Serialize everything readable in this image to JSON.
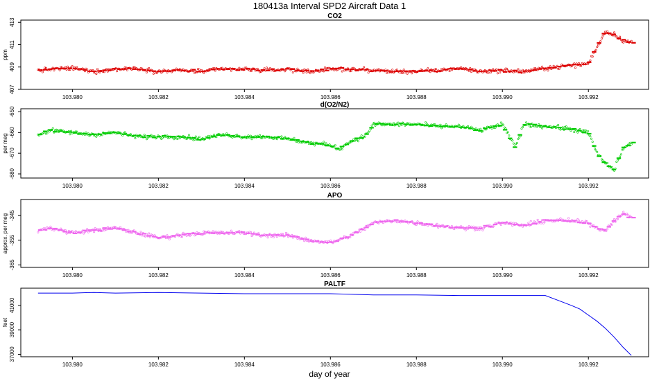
{
  "figure": {
    "title": "180413a   Interval SPD2 Aircraft Data 1",
    "xlabel": "day of year"
  },
  "chart_data": [
    {
      "type": "scatter",
      "title": "CO2",
      "ylabel": "ppm",
      "xlim": [
        103.9788,
        103.9934
      ],
      "ylim": [
        407,
        413.2
      ],
      "xticks": [
        "103.980",
        "103.982",
        "103.984",
        "103.986",
        "103.988",
        "103.990",
        "103.992"
      ],
      "yticks": [
        "407",
        "409",
        "411",
        "413"
      ],
      "series": [
        {
          "style": "raw points (open circles) + interval means (short bars)",
          "color": "#dd0000",
          "x": [
            103.9792,
            103.9795,
            103.98,
            103.9805,
            103.981,
            103.9815,
            103.982,
            103.9825,
            103.983,
            103.9835,
            103.984,
            103.9845,
            103.985,
            103.9855,
            103.986,
            103.9865,
            103.987,
            103.9875,
            103.988,
            103.9885,
            103.989,
            103.9895,
            103.99,
            103.9905,
            103.991,
            103.9915,
            103.992,
            103.9922,
            103.9924,
            103.9926,
            103.9928,
            103.993
          ],
          "y": [
            408.7,
            408.8,
            408.9,
            408.6,
            408.8,
            408.9,
            408.6,
            408.7,
            408.6,
            408.8,
            408.8,
            408.7,
            408.8,
            408.6,
            408.8,
            408.8,
            408.7,
            408.6,
            408.6,
            408.7,
            408.9,
            408.6,
            408.7,
            408.6,
            408.9,
            409.1,
            409.3,
            410.8,
            412.2,
            411.9,
            411.4,
            411.2
          ]
        }
      ]
    },
    {
      "type": "scatter",
      "title": "d(O2/N2)",
      "ylabel": "per meg",
      "xlim": [
        103.9788,
        103.9934
      ],
      "ylim": [
        -682,
        -648.5
      ],
      "xticks": [
        "103.980",
        "103.982",
        "103.984",
        "103.986",
        "103.988",
        "103.990",
        "103.992"
      ],
      "yticks": [
        "-680",
        "-670",
        "-660",
        "-650"
      ],
      "series": [
        {
          "style": "raw points (open circles) + interval means (short bars)",
          "color": "#00cc00",
          "x": [
            103.9792,
            103.9795,
            103.98,
            103.9805,
            103.981,
            103.9815,
            103.982,
            103.9825,
            103.983,
            103.9835,
            103.984,
            103.9845,
            103.985,
            103.9855,
            103.986,
            103.9862,
            103.9865,
            103.9868,
            103.987,
            103.9875,
            103.988,
            103.9885,
            103.989,
            103.9895,
            103.99,
            103.9903,
            103.9905,
            103.991,
            103.9915,
            103.992,
            103.9922,
            103.9924,
            103.9926,
            103.9928,
            103.993
          ],
          "y": [
            -661,
            -659,
            -660,
            -661,
            -660,
            -662,
            -662,
            -662,
            -663,
            -661,
            -662,
            -662,
            -663,
            -665,
            -666,
            -668,
            -664,
            -662,
            -656,
            -656,
            -656,
            -657,
            -657,
            -659,
            -656,
            -667,
            -656,
            -657,
            -658,
            -660,
            -670,
            -675,
            -678,
            -668,
            -665
          ]
        }
      ]
    },
    {
      "type": "scatter",
      "title": "APO",
      "ylabel": "approx. per meg",
      "xlim": [
        103.9788,
        103.9934
      ],
      "ylim": [
        -366,
        -338.5
      ],
      "xticks": [
        "103.980",
        "103.982",
        "103.984",
        "103.986",
        "103.988",
        "103.990",
        "103.992"
      ],
      "yticks": [
        "-365",
        "-355",
        "-345"
      ],
      "series": [
        {
          "style": "raw points (open circles) + interval means (short bars)",
          "color": "#ee66ee",
          "x": [
            103.9792,
            103.9795,
            103.98,
            103.9805,
            103.981,
            103.9815,
            103.982,
            103.9825,
            103.983,
            103.9835,
            103.984,
            103.9845,
            103.985,
            103.9855,
            103.986,
            103.9865,
            103.987,
            103.9875,
            103.988,
            103.9885,
            103.989,
            103.9895,
            103.99,
            103.9905,
            103.991,
            103.9915,
            103.992,
            103.9922,
            103.9924,
            103.9926,
            103.9928,
            103.993
          ],
          "y": [
            -351,
            -350,
            -352,
            -351,
            -350,
            -352,
            -354,
            -353,
            -352,
            -352,
            -352,
            -353,
            -353,
            -355,
            -356,
            -353,
            -348,
            -347,
            -348,
            -349,
            -350,
            -350,
            -348,
            -349,
            -347,
            -347,
            -348,
            -350,
            -351,
            -347,
            -344,
            -346
          ]
        }
      ]
    },
    {
      "type": "line",
      "title": "PALTF",
      "ylabel": "feet",
      "xlim": [
        103.9788,
        103.9934
      ],
      "ylim": [
        36800,
        42400
      ],
      "xticks": [
        "103.980",
        "103.982",
        "103.984",
        "103.986",
        "103.988",
        "103.990",
        "103.992"
      ],
      "yticks": [
        "37000",
        "39000",
        "41000"
      ],
      "series": [
        {
          "color": "#0000ee",
          "x": [
            103.9792,
            103.98,
            103.9805,
            103.981,
            103.982,
            103.983,
            103.984,
            103.985,
            103.986,
            103.987,
            103.988,
            103.989,
            103.99,
            103.991,
            103.9913,
            103.9916,
            103.9918,
            103.992,
            103.9922,
            103.9924,
            103.9926,
            103.9928,
            103.993
          ],
          "y": [
            42000,
            42000,
            42050,
            42000,
            42050,
            42000,
            41950,
            41950,
            41950,
            41850,
            41850,
            41800,
            41800,
            41800,
            41400,
            41000,
            40700,
            40200,
            39700,
            39100,
            38400,
            37600,
            36900
          ]
        }
      ]
    }
  ]
}
